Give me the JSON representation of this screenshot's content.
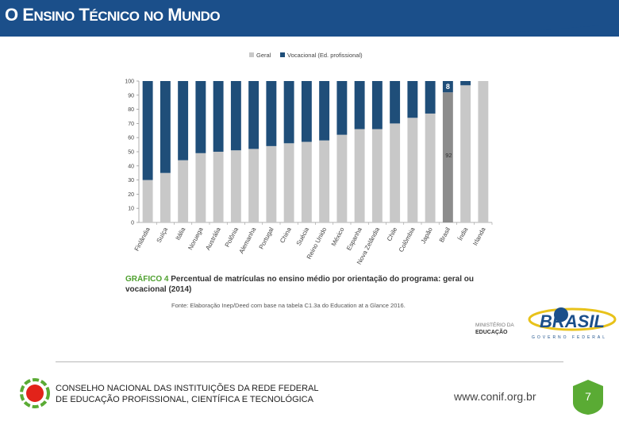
{
  "header": {
    "title_parts": [
      {
        "big": "O",
        "small": ""
      },
      {
        "big": "E",
        "small": "NSINO"
      },
      {
        "big": "T",
        "small": "ÉCNICO"
      },
      {
        "big": "",
        "small": "NO"
      },
      {
        "big": "M",
        "small": "UNDO"
      }
    ]
  },
  "chart_data": {
    "type": "bar",
    "stacked": true,
    "legend": {
      "position": "top",
      "entries": [
        "Geral",
        "Vocacional (Ed. profissional)"
      ]
    },
    "categories": [
      "Finlândia",
      "Suíça",
      "Itália",
      "Noruega",
      "Austrália",
      "Polônia",
      "Alemanha",
      "Portugal",
      "China",
      "Suécia",
      "Reino Unido",
      "México",
      "Espanha",
      "Nova Zelândia",
      "Chile",
      "Colômbia",
      "Japão",
      "Brasil",
      "Índia",
      "Irlanda"
    ],
    "series": [
      {
        "name": "Geral",
        "values": [
          30,
          35,
          44,
          49,
          50,
          51,
          52,
          54,
          56,
          57,
          58,
          62,
          66,
          66,
          70,
          74,
          77,
          92,
          97,
          100
        ]
      },
      {
        "name": "Vocacional (Ed. profissional)",
        "values": [
          70,
          65,
          56,
          51,
          50,
          49,
          48,
          46,
          44,
          43,
          42,
          38,
          34,
          34,
          30,
          26,
          23,
          8,
          3,
          0
        ]
      }
    ],
    "highlight": {
      "category": "Brasil",
      "general_label": "92",
      "vocational_label": "8"
    },
    "ylim": [
      0,
      100
    ],
    "yticks": [
      0,
      10,
      20,
      30,
      40,
      50,
      60,
      70,
      80,
      90,
      100
    ],
    "grid": false,
    "colors": {
      "geral": "#c8c8c8",
      "vocacional": "#1f4e79",
      "brasil_geral": "#8c8c8c",
      "axis": "#9a9a9a",
      "text": "#444444"
    }
  },
  "caption": {
    "label": "GRÁFICO 4",
    "text": "Percentual de matrículas no ensino médio por orientação do programa: geral ou vocacional (2014)",
    "source": "Fonte: Elaboração Inep/Deed com base na tabela C1.3a do Education at a Glance 2016."
  },
  "logos": {
    "ministerio_line1": "MINISTÉRIO DA",
    "ministerio_line2": "EDUCAÇÃO",
    "brasil": "BRASIL",
    "governo": "GOVERNO FEDERAL"
  },
  "footer": {
    "org_line1": "CONSELHO NACIONAL DAS INSTITUIÇÕES DA REDE FEDERAL",
    "org_line2": "DE EDUCAÇÃO PROFISSIONAL, CIENTÍFICA E TECNOLÓGICA",
    "url": "www.conif.org.br",
    "page_number": "7"
  },
  "colors": {
    "header_bg": "#1b4f8a",
    "accent_green": "#5aab34",
    "accent_red": "#e2231a"
  }
}
